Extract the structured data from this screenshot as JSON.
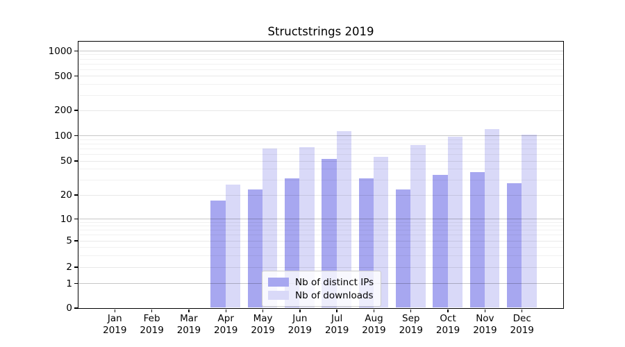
{
  "title": "Structstrings 2019",
  "chart_data": {
    "type": "bar",
    "categories": [
      "Jan",
      "Feb",
      "Mar",
      "Apr",
      "May",
      "Jun",
      "Jul",
      "Aug",
      "Sep",
      "Oct",
      "Nov",
      "Dec"
    ],
    "category_year": "2019",
    "series": [
      {
        "name": "Nb of distinct IPs",
        "color": "#a7a7f0",
        "values": [
          0,
          0,
          0,
          17,
          23,
          31,
          52,
          31,
          23,
          34,
          37,
          27
        ]
      },
      {
        "name": "Nb of downloads",
        "color": "#d9d9f8",
        "values": [
          0,
          0,
          0,
          26,
          70,
          72,
          112,
          56,
          76,
          96,
          118,
          102
        ]
      }
    ],
    "y_ticks": [
      0,
      1,
      2,
      5,
      10,
      20,
      50,
      100,
      200,
      500,
      1000
    ],
    "y_scale": "symlog",
    "ylim": [
      0,
      1300
    ],
    "grid": true,
    "legend_position": "lower center"
  }
}
